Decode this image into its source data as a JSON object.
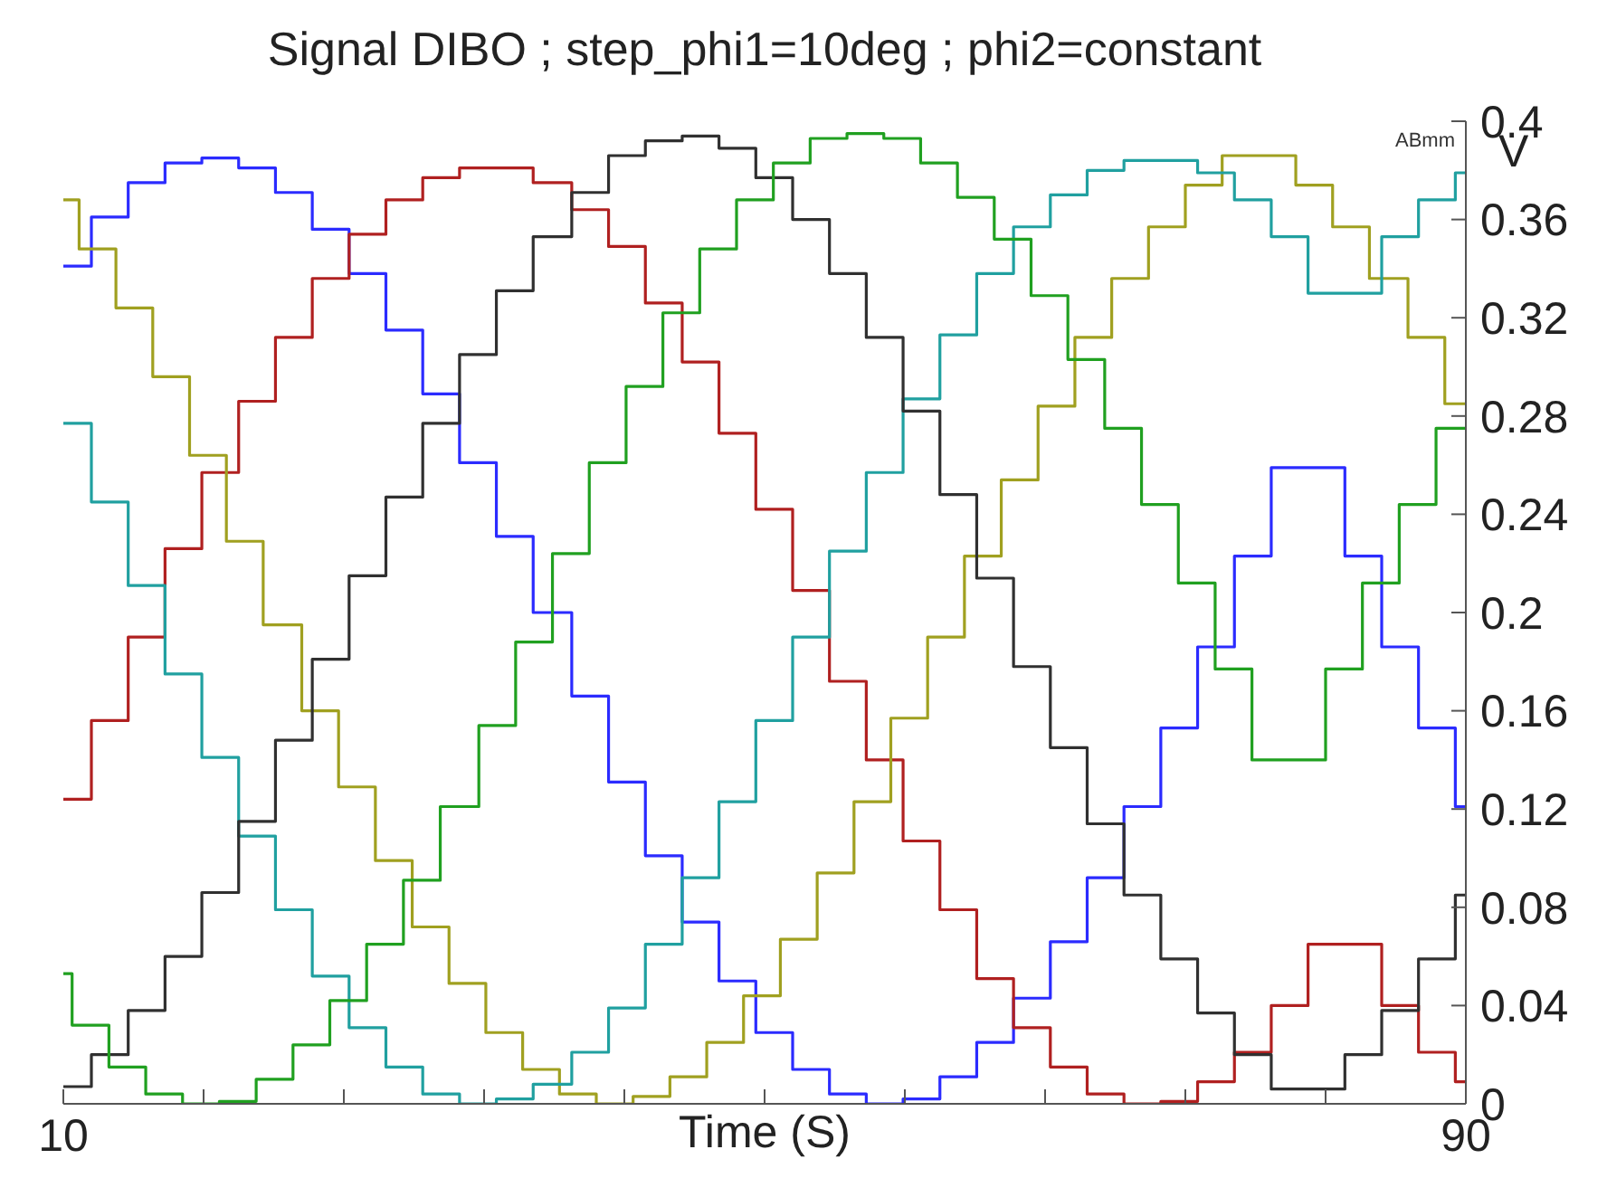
{
  "chart_data": {
    "type": "step",
    "title": "Signal DIBO ; step_phi1=10deg ; phi2=constant",
    "xlabel": "Time (S)",
    "ylabel": "V",
    "annotations": [
      "ABmm"
    ],
    "x": [
      10,
      11.6,
      13.7,
      15.8,
      17.9,
      20.0,
      22.1,
      24.2,
      26.3,
      28.4,
      30.5,
      32.6,
      34.7,
      36.8,
      39.0,
      41.1,
      43.2,
      45.3,
      47.4,
      49.5,
      51.6,
      53.7,
      55.8,
      57.9,
      60.0,
      62.1,
      64.2,
      66.3,
      68.4,
      70.5,
      72.6,
      74.7,
      76.8,
      78.9,
      81.0,
      83.1,
      85.2,
      87.3,
      89.4,
      90
    ],
    "series": [
      {
        "color": "#2b2bff",
        "values": [
          0.341,
          0.361,
          0.375,
          0.383,
          0.385,
          0.381,
          0.371,
          0.356,
          0.338,
          0.315,
          0.289,
          0.261,
          0.231,
          0.2,
          0.166,
          0.131,
          0.101,
          0.074,
          0.05,
          0.029,
          0.014,
          0.004,
          0,
          0.002,
          0.011,
          0.025,
          0.043,
          0.066,
          0.092,
          0.121,
          0.153,
          0.186,
          0.223,
          0.259,
          0.259,
          0.223,
          0.186,
          0.153,
          0.121,
          0.121
        ]
      },
      {
        "color": "#b02020",
        "values": [
          0.124,
          0.156,
          0.19,
          0.226,
          0.257,
          0.286,
          0.312,
          0.336,
          0.354,
          0.368,
          0.377,
          0.381,
          0.381,
          0.375,
          0.364,
          0.349,
          0.326,
          0.302,
          0.273,
          0.242,
          0.209,
          0.172,
          0.14,
          0.107,
          0.079,
          0.051,
          0.031,
          0.015,
          0.004,
          0,
          0.001,
          0.009,
          0.021,
          0.04,
          0.065,
          0.065,
          0.04,
          0.021,
          0.009,
          0.009
        ]
      },
      {
        "color": "#a0a020",
        "x": [
          10,
          10.9,
          13.0,
          15.1,
          17.2,
          19.3,
          21.4,
          23.6,
          25.7,
          27.8,
          29.9,
          32.0,
          34.1,
          36.2,
          38.3,
          40.4,
          42.5,
          44.6,
          46.7,
          48.8,
          50.9,
          53.0,
          55.1,
          57.2,
          59.3,
          61.4,
          63.5,
          65.6,
          67.7,
          69.8,
          71.9,
          74.0,
          76.1,
          78.2,
          80.3,
          82.4,
          84.5,
          86.7,
          88.8,
          90
        ],
        "values": [
          0.368,
          0.348,
          0.324,
          0.296,
          0.264,
          0.229,
          0.195,
          0.16,
          0.129,
          0.099,
          0.072,
          0.049,
          0.029,
          0.014,
          0.004,
          0,
          0.003,
          0.011,
          0.025,
          0.044,
          0.067,
          0.094,
          0.123,
          0.157,
          0.19,
          0.223,
          0.254,
          0.284,
          0.312,
          0.336,
          0.357,
          0.374,
          0.386,
          0.386,
          0.374,
          0.357,
          0.336,
          0.312,
          0.285,
          0.285
        ]
      },
      {
        "color": "#20a0a0",
        "values": [
          0.277,
          0.245,
          0.211,
          0.175,
          0.141,
          0.109,
          0.079,
          0.052,
          0.031,
          0.015,
          0.004,
          0,
          0.002,
          0.008,
          0.021,
          0.039,
          0.065,
          0.092,
          0.123,
          0.156,
          0.19,
          0.225,
          0.257,
          0.287,
          0.313,
          0.338,
          0.357,
          0.37,
          0.38,
          0.384,
          0.384,
          0.379,
          0.368,
          0.353,
          0.33,
          0.33,
          0.353,
          0.368,
          0.379,
          0.379
        ]
      },
      {
        "color": "#303030",
        "values": [
          0.007,
          0.02,
          0.038,
          0.06,
          0.086,
          0.115,
          0.148,
          0.181,
          0.215,
          0.247,
          0.277,
          0.305,
          0.331,
          0.353,
          0.371,
          0.386,
          0.392,
          0.394,
          0.389,
          0.377,
          0.36,
          0.338,
          0.312,
          0.282,
          0.248,
          0.214,
          0.178,
          0.145,
          0.114,
          0.085,
          0.059,
          0.037,
          0.02,
          0.006,
          0.006,
          0.02,
          0.038,
          0.059,
          0.085,
          0.085
        ]
      },
      {
        "color": "#20a020",
        "x": [
          10,
          10.5,
          12.6,
          14.7,
          16.8,
          18.9,
          21.0,
          23.1,
          25.2,
          27.3,
          29.4,
          31.5,
          33.7,
          35.8,
          37.9,
          40.0,
          42.1,
          44.2,
          46.3,
          48.4,
          50.5,
          52.6,
          54.7,
          56.8,
          58.9,
          61.0,
          63.1,
          65.2,
          67.3,
          69.4,
          71.5,
          73.6,
          75.7,
          77.8,
          79.9,
          82.0,
          84.1,
          86.2,
          88.3,
          90
        ],
        "values": [
          0.053,
          0.032,
          0.015,
          0.004,
          0,
          0.001,
          0.01,
          0.024,
          0.042,
          0.065,
          0.091,
          0.121,
          0.154,
          0.188,
          0.224,
          0.261,
          0.292,
          0.322,
          0.348,
          0.368,
          0.383,
          0.393,
          0.395,
          0.393,
          0.383,
          0.369,
          0.352,
          0.329,
          0.303,
          0.275,
          0.244,
          0.212,
          0.177,
          0.14,
          0.14,
          0.177,
          0.212,
          0.244,
          0.275,
          0.275
        ]
      }
    ],
    "xlim": [
      10,
      90
    ],
    "xticks": [
      10,
      {
        "value": 18,
        "label": null
      },
      {
        "value": 26,
        "label": null
      },
      {
        "value": 34,
        "label": null
      },
      {
        "value": 42,
        "label": null
      },
      {
        "value": 50,
        "label": null
      },
      {
        "value": 58,
        "label": null
      },
      {
        "value": 66,
        "label": null
      },
      {
        "value": 74,
        "label": null
      },
      {
        "value": 82,
        "label": null
      },
      90
    ],
    "ylim": [
      0,
      0.4
    ],
    "yticks": [
      0,
      0.04,
      0.08,
      0.12,
      0.16,
      0.2,
      0.24,
      0.28,
      0.32,
      0.36,
      0.4
    ],
    "grid": false,
    "legend": false,
    "marker": "none",
    "line_style": "solid"
  }
}
